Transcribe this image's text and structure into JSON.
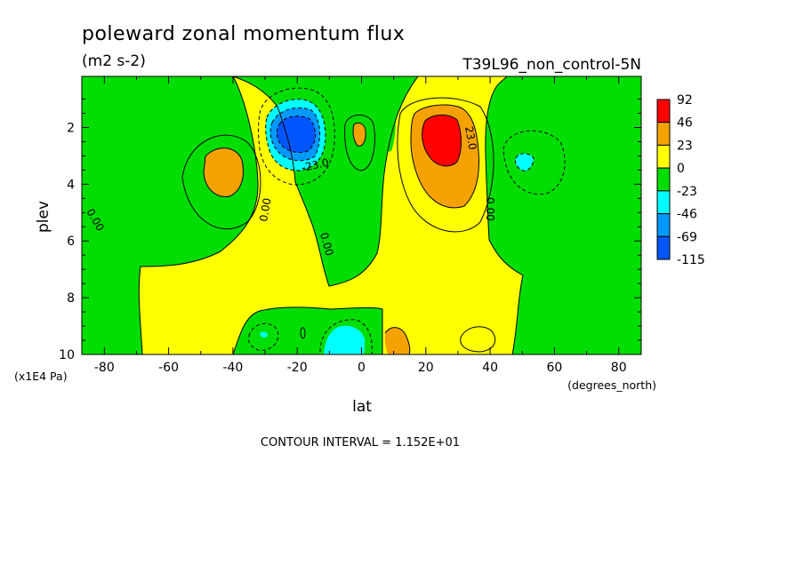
{
  "chart_data": {
    "type": "heatmap",
    "title": "poleward zonal momentum flux",
    "units": "(m2 s-2)",
    "experiment": "T39L96_non_control-5N",
    "xlabel": "lat",
    "x_units": "(degrees_north)",
    "ylabel": "plev",
    "y_units": "(x1E4 Pa)",
    "xlim": [
      -87,
      87
    ],
    "ylim": [
      10,
      0.2
    ],
    "x_ticks": [
      -80,
      -60,
      -40,
      -20,
      0,
      20,
      40,
      60,
      80
    ],
    "y_ticks": [
      2,
      4,
      6,
      8,
      10
    ],
    "contour_interval_text": "CONTOUR INTERVAL = 1.152E+01",
    "legend_levels": [
      "92",
      "46",
      "23",
      "0",
      "-23",
      "-46",
      "-69",
      "-115"
    ],
    "legend_colors": [
      "#ff0000",
      "#f5a200",
      "#ffff00",
      "#00dd00",
      "#00ffff",
      "#0099ff",
      "#0055ff"
    ],
    "contour_labels": [
      {
        "text": "0.00",
        "lat": -83,
        "plev": 5.2
      },
      {
        "text": "0.00",
        "lat": -31,
        "plev": 4.6
      },
      {
        "text": "0.00",
        "lat": -11,
        "plev": 6.2
      },
      {
        "text": "0.00",
        "lat": 41,
        "plev": 4.7
      },
      {
        "text": "-23.0",
        "lat": -14,
        "plev": 3.0
      },
      {
        "text": "23.0",
        "lat": 33,
        "plev": 2.5
      }
    ],
    "features": [
      {
        "sign": "positive",
        "lat": -44,
        "plev": 3.2,
        "peak_band": "23 to 46"
      },
      {
        "sign": "negative",
        "lat": -18,
        "plev": 2.2,
        "peak_band": "-115 to -69"
      },
      {
        "sign": "positive",
        "lat": 26,
        "plev": 2.5,
        "peak_band": "46 to 92"
      },
      {
        "sign": "negative",
        "lat": 52,
        "plev": 3.1,
        "peak_band": "-46 to -23"
      },
      {
        "sign": "negative",
        "lat": -3,
        "plev": 9.4,
        "peak_band": "-46 to -23"
      },
      {
        "sign": "positive",
        "lat": 13,
        "plev": 9.5,
        "peak_band": "23 to 46"
      },
      {
        "sign": "positive",
        "lat": 0,
        "plev": 2.2,
        "peak_band": "23 to 46"
      }
    ]
  }
}
